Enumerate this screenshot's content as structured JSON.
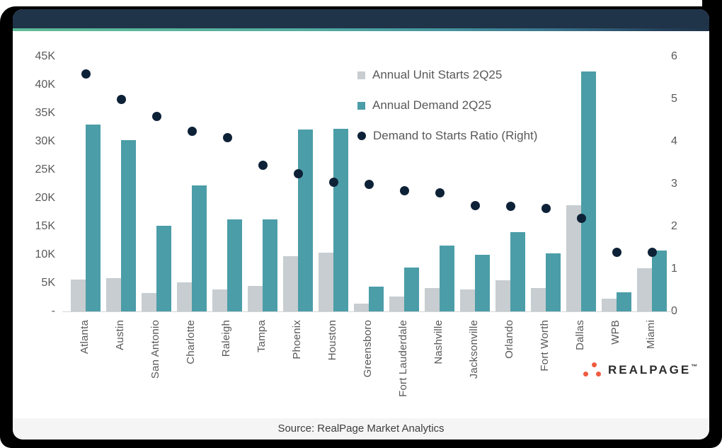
{
  "footer": {
    "source_text": "Source: RealPage Market Analytics"
  },
  "logo": {
    "text": "REALPAGE",
    "mark": "™"
  },
  "colors": {
    "frame_black": "#000000",
    "header_navy": "#1F3349",
    "stripe_green": "#5EBB96",
    "bar_gray": "#C7CDD0",
    "bar_teal": "#4B9DA8",
    "dot_navy": "#0D2137",
    "axis_text": "#595959",
    "logo_orange": "#EF5B40",
    "footer_bg": "#F5F5F6"
  },
  "chart_data": {
    "type": "bar",
    "subtype": "grouped-bars-with-scatter-overlay",
    "categories": [
      "Atlanta",
      "Austin",
      "San Antonio",
      "Charlotte",
      "Raleigh",
      "Tampa",
      "Phoenix",
      "Houston",
      "Greensboro",
      "Fort Lauderdale",
      "Nashville",
      "Jacksonville",
      "Orlando",
      "Fort Worth",
      "Dallas",
      "WPB",
      "Miami"
    ],
    "series": [
      {
        "name": "Annual Unit Starts 2Q25",
        "type": "bar",
        "axis": "left",
        "color": "#C7CDD0",
        "values": [
          5600,
          5900,
          3200,
          5100,
          3900,
          4500,
          9700,
          10400,
          1400,
          2600,
          4100,
          3900,
          5500,
          4100,
          18700,
          2300,
          7600
        ]
      },
      {
        "name": "Annual Demand 2Q25",
        "type": "bar",
        "axis": "left",
        "color": "#4B9DA8",
        "values": [
          33000,
          30300,
          15100,
          22200,
          16300,
          16200,
          32100,
          32200,
          4400,
          7700,
          11600,
          10000,
          14000,
          10200,
          42400,
          3400,
          10800
        ]
      },
      {
        "name": "Demand to Starts Ratio (Right)",
        "type": "scatter",
        "axis": "right",
        "color": "#0D2137",
        "values": [
          5.6,
          5.0,
          4.6,
          4.25,
          4.1,
          3.45,
          3.25,
          3.05,
          3.0,
          2.85,
          2.8,
          2.5,
          2.48,
          2.43,
          2.2,
          1.4,
          1.4
        ]
      }
    ],
    "left_axis": {
      "min": 0,
      "max": 45000,
      "ticks": [
        "45K",
        "40K",
        "35K",
        "30K",
        "25K",
        "20K",
        "15K",
        "10K",
        "5K",
        "-"
      ]
    },
    "right_axis": {
      "min": 0,
      "max": 6,
      "ticks": [
        "6",
        "5",
        "4",
        "3",
        "2",
        "1",
        "0"
      ]
    },
    "grid": false,
    "legend_position": "inside-top-center-right",
    "title": ""
  }
}
